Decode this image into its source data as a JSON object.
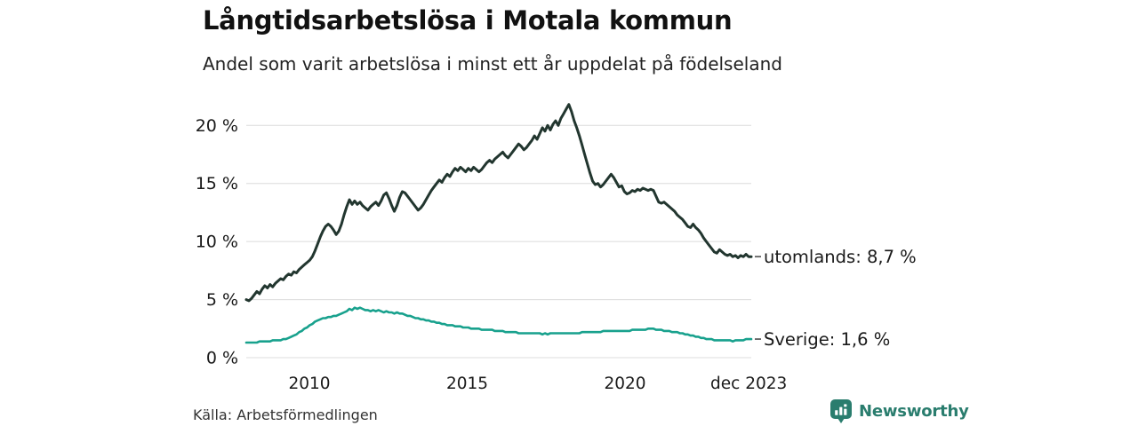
{
  "header": {
    "title": "Långtidsarbetslösa i Motala kommun",
    "subtitle": "Andel som varit arbetslösa i minst ett år uppdelat på födelseland"
  },
  "footer": {
    "source": "Källa: Arbetsförmedlingen",
    "brand": "Newsworthy"
  },
  "colors": {
    "utomlands_line": "#22362f",
    "sverige_line": "#18a18d",
    "grid": "#dcdcdc",
    "tick_text": "#1a1a1a",
    "series_label_text": "#1a1a1a",
    "label_dash": "#606060",
    "brand_teal": "#2a7d6e",
    "background": "#ffffff"
  },
  "chart_data": {
    "type": "line",
    "title": "Långtidsarbetslösa i Motala kommun",
    "subtitle": "Andel som varit arbetslösa i minst ett år uppdelat på födelseland",
    "unit": "%",
    "frequency": "monthly",
    "x_start": "2008-01",
    "x_end": "2023-12",
    "x_range": {
      "start_year": 2008,
      "end_year": 2024
    },
    "ylim": [
      0,
      22
    ],
    "grid": true,
    "legend_position": "right-of-line-end",
    "y_ticks": [
      {
        "label": "0 %",
        "value": 0
      },
      {
        "label": "5 %",
        "value": 5
      },
      {
        "label": "10 %",
        "value": 10
      },
      {
        "label": "15 %",
        "value": 15
      },
      {
        "label": "20 %",
        "value": 20
      }
    ],
    "x_ticks": [
      {
        "label": "2010",
        "year": 2010
      },
      {
        "label": "2015",
        "year": 2015
      },
      {
        "label": "2020",
        "year": 2020
      },
      {
        "label": "dec 2023",
        "year": 2023.92
      }
    ],
    "series": [
      {
        "name": "utomlands",
        "label": "utomlands: 8,7 %",
        "last_value": 8.7,
        "color": "#22362f",
        "stroke_width": 3,
        "values": [
          5.0,
          4.9,
          5.1,
          5.4,
          5.7,
          5.5,
          5.9,
          6.2,
          6.0,
          6.3,
          6.1,
          6.4,
          6.6,
          6.8,
          6.7,
          7.0,
          7.2,
          7.1,
          7.4,
          7.3,
          7.6,
          7.8,
          8.0,
          8.2,
          8.4,
          8.7,
          9.2,
          9.8,
          10.4,
          10.9,
          11.3,
          11.5,
          11.3,
          11.0,
          10.6,
          10.9,
          11.5,
          12.3,
          13.0,
          13.6,
          13.2,
          13.5,
          13.2,
          13.4,
          13.1,
          12.9,
          12.7,
          13.0,
          13.2,
          13.4,
          13.1,
          13.5,
          14.0,
          14.2,
          13.7,
          13.1,
          12.6,
          13.1,
          13.8,
          14.3,
          14.2,
          13.9,
          13.6,
          13.3,
          13.0,
          12.7,
          12.9,
          13.2,
          13.6,
          14.0,
          14.4,
          14.7,
          15.0,
          15.3,
          15.1,
          15.5,
          15.8,
          15.6,
          16.0,
          16.3,
          16.1,
          16.4,
          16.2,
          16.0,
          16.3,
          16.1,
          16.4,
          16.2,
          16.0,
          16.2,
          16.5,
          16.8,
          17.0,
          16.8,
          17.1,
          17.3,
          17.5,
          17.7,
          17.4,
          17.2,
          17.5,
          17.8,
          18.1,
          18.4,
          18.2,
          17.9,
          18.1,
          18.4,
          18.7,
          19.1,
          18.8,
          19.3,
          19.8,
          19.5,
          20.0,
          19.6,
          20.1,
          20.4,
          20.0,
          20.6,
          21.0,
          21.4,
          21.8,
          21.2,
          20.4,
          19.8,
          19.1,
          18.3,
          17.5,
          16.7,
          15.9,
          15.2,
          14.9,
          15.0,
          14.7,
          14.9,
          15.2,
          15.5,
          15.8,
          15.5,
          15.1,
          14.7,
          14.8,
          14.3,
          14.1,
          14.2,
          14.4,
          14.3,
          14.5,
          14.4,
          14.6,
          14.5,
          14.4,
          14.5,
          14.4,
          13.9,
          13.4,
          13.3,
          13.4,
          13.2,
          13.0,
          12.8,
          12.6,
          12.3,
          12.1,
          11.9,
          11.6,
          11.3,
          11.2,
          11.5,
          11.2,
          11.0,
          10.7,
          10.3,
          10.0,
          9.7,
          9.4,
          9.1,
          9.0,
          9.3,
          9.1,
          8.9,
          8.8,
          8.9,
          8.7,
          8.8,
          8.6,
          8.8,
          8.7,
          8.9,
          8.7,
          8.7
        ]
      },
      {
        "name": "Sverige",
        "label": "Sverige: 1,6 %",
        "last_value": 1.6,
        "color": "#18a18d",
        "stroke_width": 2.6,
        "values": [
          1.3,
          1.3,
          1.3,
          1.3,
          1.3,
          1.4,
          1.4,
          1.4,
          1.4,
          1.4,
          1.5,
          1.5,
          1.5,
          1.5,
          1.6,
          1.6,
          1.7,
          1.8,
          1.9,
          2.0,
          2.2,
          2.3,
          2.5,
          2.6,
          2.8,
          2.9,
          3.1,
          3.2,
          3.3,
          3.4,
          3.4,
          3.5,
          3.5,
          3.6,
          3.6,
          3.7,
          3.8,
          3.9,
          4.0,
          4.2,
          4.1,
          4.3,
          4.2,
          4.3,
          4.2,
          4.1,
          4.1,
          4.0,
          4.1,
          4.0,
          4.1,
          4.0,
          3.9,
          4.0,
          3.9,
          3.9,
          3.8,
          3.9,
          3.8,
          3.8,
          3.7,
          3.6,
          3.6,
          3.5,
          3.4,
          3.4,
          3.3,
          3.3,
          3.2,
          3.2,
          3.1,
          3.1,
          3.0,
          3.0,
          2.9,
          2.9,
          2.8,
          2.8,
          2.8,
          2.7,
          2.7,
          2.7,
          2.6,
          2.6,
          2.6,
          2.5,
          2.5,
          2.5,
          2.5,
          2.4,
          2.4,
          2.4,
          2.4,
          2.4,
          2.3,
          2.3,
          2.3,
          2.3,
          2.2,
          2.2,
          2.2,
          2.2,
          2.2,
          2.1,
          2.1,
          2.1,
          2.1,
          2.1,
          2.1,
          2.1,
          2.1,
          2.1,
          2.0,
          2.1,
          2.0,
          2.1,
          2.1,
          2.1,
          2.1,
          2.1,
          2.1,
          2.1,
          2.1,
          2.1,
          2.1,
          2.1,
          2.1,
          2.2,
          2.2,
          2.2,
          2.2,
          2.2,
          2.2,
          2.2,
          2.2,
          2.3,
          2.3,
          2.3,
          2.3,
          2.3,
          2.3,
          2.3,
          2.3,
          2.3,
          2.3,
          2.3,
          2.4,
          2.4,
          2.4,
          2.4,
          2.4,
          2.4,
          2.5,
          2.5,
          2.5,
          2.4,
          2.4,
          2.4,
          2.3,
          2.3,
          2.3,
          2.2,
          2.2,
          2.2,
          2.1,
          2.1,
          2.0,
          2.0,
          1.9,
          1.9,
          1.8,
          1.8,
          1.7,
          1.7,
          1.6,
          1.6,
          1.6,
          1.5,
          1.5,
          1.5,
          1.5,
          1.5,
          1.5,
          1.5,
          1.4,
          1.5,
          1.5,
          1.5,
          1.5,
          1.6,
          1.6,
          1.6
        ]
      }
    ]
  }
}
